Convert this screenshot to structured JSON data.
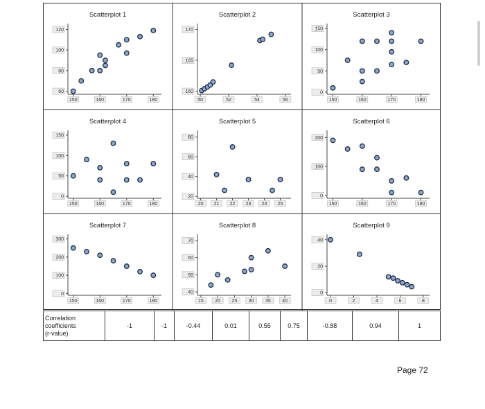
{
  "chart_data": [
    {
      "type": "scatter",
      "title": "Scatterplot 1",
      "x": [
        150,
        153,
        157,
        160,
        160,
        162,
        162,
        167,
        170,
        170,
        175,
        180
      ],
      "y": [
        60,
        70,
        80,
        80,
        95,
        85,
        90,
        105,
        97,
        110,
        113,
        119
      ],
      "xticks": [
        "150",
        "160",
        "170",
        "180"
      ],
      "yticks": [
        "60",
        "80",
        "100",
        "120"
      ],
      "xlim": [
        148,
        182
      ],
      "ylim": [
        57,
        123
      ]
    },
    {
      "type": "scatter",
      "title": "Scatterplot 2",
      "x": [
        50.1,
        50.3,
        50.5,
        50.7,
        50.9,
        52.2,
        54.2,
        54.4,
        55
      ],
      "y": [
        160.1,
        160.4,
        160.7,
        161,
        161.5,
        164.2,
        168.2,
        168.4,
        169.2
      ],
      "xticks": [
        "50",
        "52",
        "54",
        "56"
      ],
      "yticks": [
        "160",
        "165",
        "170"
      ],
      "xlim": [
        49.8,
        56.2
      ],
      "ylim": [
        159.5,
        170.5
      ]
    },
    {
      "type": "scatter",
      "title": "Scatterplot 3",
      "x": [
        150,
        155,
        160,
        160,
        160,
        165,
        165,
        170,
        170,
        170,
        170,
        175,
        180
      ],
      "y": [
        10,
        75,
        25,
        50,
        120,
        50,
        120,
        65,
        95,
        120,
        140,
        70,
        120
      ],
      "xticks": [
        "150",
        "160",
        "170",
        "180"
      ],
      "yticks": [
        "0",
        "50",
        "100",
        "150"
      ],
      "xlim": [
        148,
        182
      ],
      "ylim": [
        -5,
        155
      ]
    },
    {
      "type": "scatter",
      "title": "Scatterplot 4",
      "x": [
        150,
        155,
        160,
        160,
        165,
        165,
        170,
        170,
        175,
        180
      ],
      "y": [
        50,
        90,
        40,
        70,
        10,
        130,
        40,
        80,
        40,
        80
      ],
      "xticks": [
        "150",
        "160",
        "170",
        "180"
      ],
      "yticks": [
        "0",
        "50",
        "100",
        "150"
      ],
      "xlim": [
        148,
        182
      ],
      "ylim": [
        -5,
        155
      ]
    },
    {
      "type": "scatter",
      "title": "Scatterplot 5",
      "x": [
        21,
        21.5,
        22,
        23,
        24.5,
        25
      ],
      "y": [
        42,
        26,
        70,
        37,
        26,
        37
      ],
      "xticks": [
        "20",
        "21",
        "22",
        "23",
        "24",
        "25"
      ],
      "yticks": [
        "20",
        "40",
        "60",
        "80"
      ],
      "xlim": [
        19.8,
        25.5
      ],
      "ylim": [
        18,
        84
      ]
    },
    {
      "type": "scatter",
      "title": "Scatterplot 6",
      "x": [
        150,
        155,
        160,
        160,
        165,
        165,
        170,
        170,
        175,
        180
      ],
      "y": [
        190,
        160,
        170,
        90,
        130,
        90,
        50,
        10,
        60,
        10
      ],
      "xticks": [
        "150",
        "160",
        "170",
        "180"
      ],
      "yticks": [
        "0",
        "100",
        "200"
      ],
      "xlim": [
        148,
        182
      ],
      "ylim": [
        -10,
        215
      ]
    },
    {
      "type": "scatter",
      "title": "Scatterplot 7",
      "x": [
        150,
        155,
        160,
        165,
        170,
        175,
        180
      ],
      "y": [
        250,
        230,
        210,
        180,
        150,
        120,
        100
      ],
      "xticks": [
        "150",
        "160",
        "170",
        "180"
      ],
      "yticks": [
        "0",
        "100",
        "200",
        "300"
      ],
      "xlim": [
        148,
        182
      ],
      "ylim": [
        -10,
        310
      ]
    },
    {
      "type": "scatter",
      "title": "Scatterplot 8",
      "x": [
        18,
        20,
        23,
        28,
        30,
        30,
        35,
        40
      ],
      "y": [
        44,
        50,
        47,
        52,
        53,
        60,
        64,
        55
      ],
      "xticks": [
        "15",
        "20",
        "25",
        "30",
        "35",
        "40"
      ],
      "yticks": [
        "40",
        "50",
        "60",
        "70"
      ],
      "xlim": [
        14,
        41
      ],
      "ylim": [
        38,
        72
      ]
    },
    {
      "type": "scatter",
      "title": "Scatterplot 9",
      "x": [
        0,
        2.5,
        5,
        5.4,
        5.8,
        6.2,
        6.6,
        7
      ],
      "y": [
        40,
        29,
        12,
        11,
        9,
        7.5,
        6,
        4.5
      ],
      "xticks": [
        "0",
        "2",
        "4",
        "6",
        "8"
      ],
      "yticks": [
        "0",
        "20",
        "40"
      ],
      "xlim": [
        -0.3,
        8.3
      ],
      "ylim": [
        -2,
        42
      ]
    }
  ],
  "table": {
    "label_lines": [
      "Correlation",
      "coefficients",
      "(r-value)"
    ],
    "values": [
      "-1",
      "-1",
      "-0.44",
      "0.01",
      "0.55",
      "0.75",
      "-0.88",
      "0.94",
      "1"
    ]
  },
  "page_label": "Page 72",
  "colors": {
    "point_fill": "#8fa7c8",
    "point_stroke": "#1f2f4a"
  }
}
